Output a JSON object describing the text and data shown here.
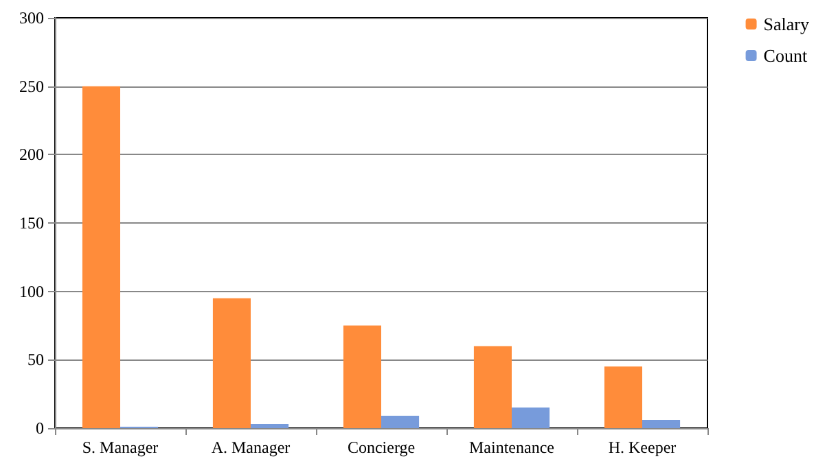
{
  "chart_data": {
    "type": "bar",
    "categories": [
      "S. Manager",
      "A. Manager",
      "Concierge",
      "Maintenance",
      "H. Keeper"
    ],
    "series": [
      {
        "name": "Salary",
        "color": "#ff8c3a",
        "values": [
          250,
          95,
          75,
          60,
          45
        ]
      },
      {
        "name": "Count",
        "color": "#779bdb",
        "values": [
          1,
          3,
          9,
          15,
          6
        ]
      }
    ],
    "ylim": [
      0,
      300
    ],
    "yticks": [
      0,
      50,
      100,
      150,
      200,
      250,
      300
    ],
    "grid": "y",
    "legend": "top right"
  }
}
